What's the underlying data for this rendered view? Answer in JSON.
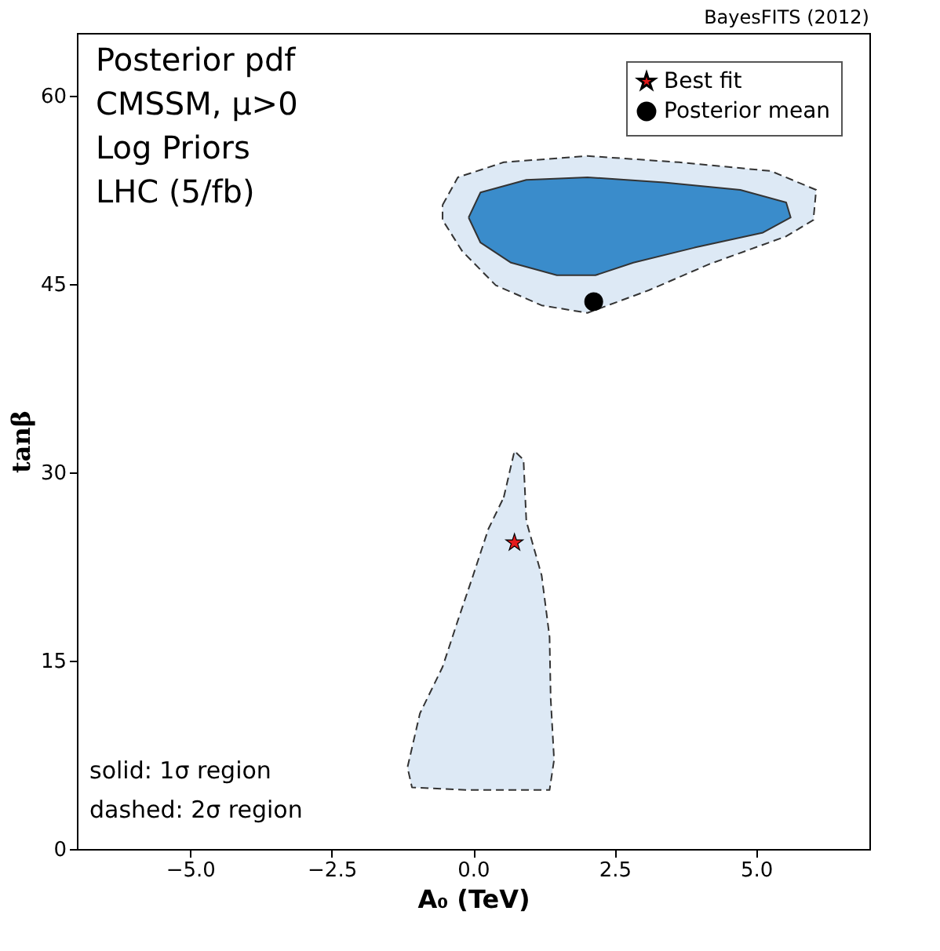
{
  "chart_data": {
    "type": "scatter",
    "xlabel": "A₀ (TeV)",
    "ylabel": "tanβ",
    "xlim": [
      -7,
      7
    ],
    "ylim": [
      0,
      65
    ],
    "xticks": [
      {
        "value": -5,
        "label": "−5.0"
      },
      {
        "value": -2.5,
        "label": "−2.5"
      },
      {
        "value": 0,
        "label": "0.0"
      },
      {
        "value": 2.5,
        "label": "2.5"
      },
      {
        "value": 5,
        "label": "5.0"
      }
    ],
    "yticks": [
      0,
      15,
      30,
      45,
      60
    ],
    "grid": false,
    "legend": "top right",
    "annotations": [
      "Posterior pdf",
      "CMSSM, μ>0",
      "Log Priors",
      "LHC (5/fb)",
      "solid: 1σ region",
      "dashed: 2σ region",
      "BayesFITS (2012)"
    ],
    "series": [
      {
        "type": "area",
        "line_style": "dashed",
        "color": "#dde9f5",
        "x": [
          -0.54,
          -0.27,
          0.54,
          2.02,
          3.64,
          5.26,
          6.06,
          6.01,
          5.53,
          4.18,
          3.1,
          2.02,
          1.21,
          0.4,
          -0.19,
          -0.54
        ],
        "values": [
          51.3,
          53.5,
          54.7,
          55.2,
          54.7,
          54.0,
          52.5,
          50.1,
          48.8,
          46.6,
          44.5,
          42.7,
          43.3,
          44.9,
          47.6,
          50.1
        ]
      },
      {
        "type": "area",
        "line_style": "dashed",
        "color": "#dde9f5",
        "x": [
          0.54,
          0.73,
          0.89,
          0.94,
          1.21,
          1.35,
          1.37,
          1.43,
          1.35,
          -0.13,
          -1.08,
          -1.16,
          -0.94,
          -0.54,
          -0.27,
          0.0,
          0.27
        ],
        "values": [
          28.0,
          31.7,
          31.0,
          26.1,
          21.8,
          16.9,
          12.0,
          7.1,
          4.7,
          4.7,
          4.9,
          6.5,
          10.8,
          14.5,
          18.2,
          21.8,
          25.5
        ]
      },
      {
        "type": "area",
        "line_style": "solid",
        "color": "#3a8ccb",
        "x": [
          -0.08,
          0.13,
          0.94,
          2.02,
          3.37,
          4.72,
          5.53,
          5.61,
          5.12,
          3.91,
          2.83,
          2.16,
          1.48,
          0.67,
          0.13
        ],
        "values": [
          50.3,
          52.3,
          53.3,
          53.5,
          53.1,
          52.5,
          51.5,
          50.3,
          49.1,
          47.9,
          46.7,
          45.7,
          45.7,
          46.7,
          48.3
        ]
      },
      {
        "name": "Best fit",
        "marker": "star",
        "color": "#e41a1c",
        "x": [
          0.73
        ],
        "values": [
          24.4
        ]
      },
      {
        "name": "Posterior mean",
        "marker": "circle",
        "color": "#000000",
        "x": [
          2.13
        ],
        "values": [
          43.6
        ]
      }
    ]
  }
}
